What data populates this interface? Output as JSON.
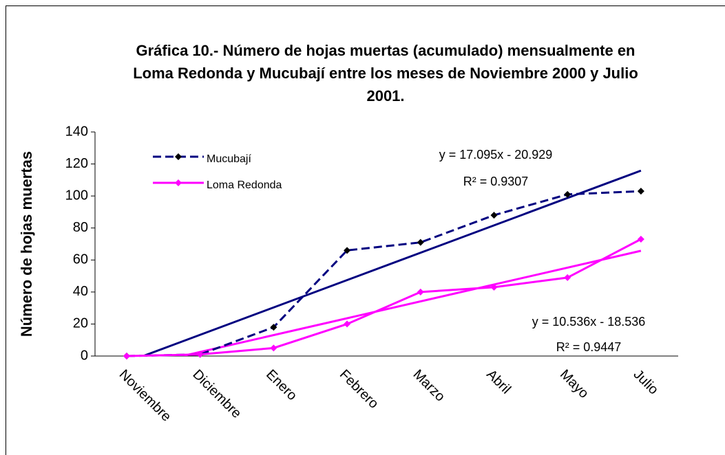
{
  "chart_data": {
    "type": "line",
    "title": [
      "Gráfica 10.- Número de hojas muertas (acumulado) mensualmente en",
      "Loma Redonda y Mucubají entre los meses de Noviembre 2000 y Julio",
      "2001."
    ],
    "y_label": "Número de hojas muertas",
    "categories": [
      "Noviembre",
      "Diciembre",
      "Enero",
      "Febrero",
      "Marzo",
      "Abril",
      "Mayo",
      "Julio"
    ],
    "series": [
      {
        "name": "Mucubají",
        "color": "#000080",
        "marker_color": "#000000",
        "dashed": true,
        "values": [
          0,
          1,
          18,
          66,
          71,
          88,
          101,
          103
        ],
        "trendline_equation": "y = 17.095x - 20.929",
        "trendline_r2": "R² = 0.9307"
      },
      {
        "name": "Loma Redonda",
        "color": "#ff00ff",
        "marker_color": "#ff00ff",
        "dashed": false,
        "values": [
          0,
          1,
          5,
          20,
          40,
          43,
          49,
          73
        ],
        "trendline_equation": "y = 10.536x - 18.536",
        "trendline_r2": "R² = 0.9447"
      }
    ],
    "ylim": [
      0,
      140
    ],
    "yticks": [
      0,
      20,
      40,
      60,
      80,
      100,
      120,
      140
    ],
    "grid": false
  }
}
